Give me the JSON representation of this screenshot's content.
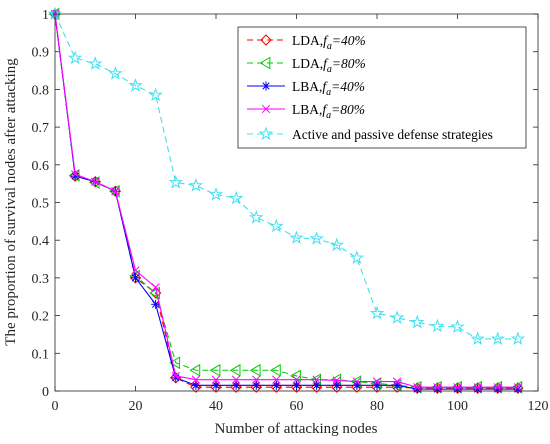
{
  "chart_data": {
    "type": "line",
    "xlabel": "Number of attacking nodes",
    "ylabel": "The proportion of survival nodes after attacking",
    "xlim": [
      0,
      120
    ],
    "ylim": [
      0,
      1
    ],
    "xticks": [
      "0",
      "20",
      "40",
      "60",
      "80",
      "100",
      "120"
    ],
    "yticks": [
      "0",
      "0.1",
      "0.2",
      "0.3",
      "0.4",
      "0.5",
      "0.6",
      "0.7",
      "0.8",
      "0.9",
      "1"
    ],
    "grid": false,
    "legend_position": "top-right",
    "x": [
      0,
      5,
      10,
      15,
      20,
      25,
      30,
      35,
      40,
      45,
      50,
      55,
      60,
      65,
      70,
      75,
      80,
      85,
      90,
      95,
      100,
      105,
      110,
      115
    ],
    "series": [
      {
        "legend": {
          "prefix": "LDA,",
          "var": "f",
          "sub": "a",
          "suffix": "=40%"
        },
        "color": "#FF0000",
        "line": "dashed",
        "marker": "diamond",
        "values": [
          1,
          0.57,
          0.555,
          0.53,
          0.3,
          0.26,
          0.035,
          0.01,
          0.01,
          0.01,
          0.01,
          0.01,
          0.01,
          0.01,
          0.01,
          0.01,
          0.01,
          0.01,
          0.008,
          0.008,
          0.008,
          0.008,
          0.008,
          0.008
        ]
      },
      {
        "legend": {
          "prefix": "LDA,",
          "var": "f",
          "sub": "a",
          "suffix": "=80%"
        },
        "color": "#00CC00",
        "line": "dashed",
        "marker": "triangle-left",
        "values": [
          1,
          0.572,
          0.553,
          0.53,
          0.305,
          0.26,
          0.075,
          0.055,
          0.055,
          0.055,
          0.055,
          0.055,
          0.04,
          0.03,
          0.03,
          0.025,
          0.02,
          0.015,
          0.01,
          0.01,
          0.01,
          0.01,
          0.01,
          0.01
        ]
      },
      {
        "legend": {
          "prefix": "LBA,",
          "var": "f",
          "sub": "a",
          "suffix": "=40%"
        },
        "color": "#0000FF",
        "line": "solid",
        "marker": "asterisk",
        "values": [
          1,
          0.57,
          0.555,
          0.53,
          0.3,
          0.23,
          0.035,
          0.015,
          0.015,
          0.015,
          0.015,
          0.015,
          0.015,
          0.015,
          0.015,
          0.015,
          0.015,
          0.015,
          0.005,
          0.005,
          0.005,
          0.005,
          0.005,
          0.005
        ]
      },
      {
        "legend": {
          "prefix": "LBA,",
          "var": "f",
          "sub": "a",
          "suffix": "=80%"
        },
        "color": "#FF00FF",
        "line": "solid",
        "marker": "x",
        "values": [
          1,
          0.575,
          0.555,
          0.53,
          0.32,
          0.275,
          0.04,
          0.03,
          0.03,
          0.03,
          0.03,
          0.03,
          0.03,
          0.03,
          0.028,
          0.025,
          0.025,
          0.025,
          0.01,
          0.01,
          0.01,
          0.01,
          0.01,
          0.01
        ]
      },
      {
        "legend": {
          "prefix": "Active and passive defense strategies",
          "var": "",
          "sub": "",
          "suffix": ""
        },
        "color": "#40E0F0",
        "line": "dashed",
        "marker": "pentagram",
        "values": [
          1,
          0.883,
          0.868,
          0.842,
          0.81,
          0.785,
          0.553,
          0.545,
          0.521,
          0.511,
          0.46,
          0.437,
          0.406,
          0.404,
          0.387,
          0.353,
          0.206,
          0.194,
          0.182,
          0.172,
          0.17,
          0.138,
          0.138,
          0.138
        ]
      }
    ]
  }
}
